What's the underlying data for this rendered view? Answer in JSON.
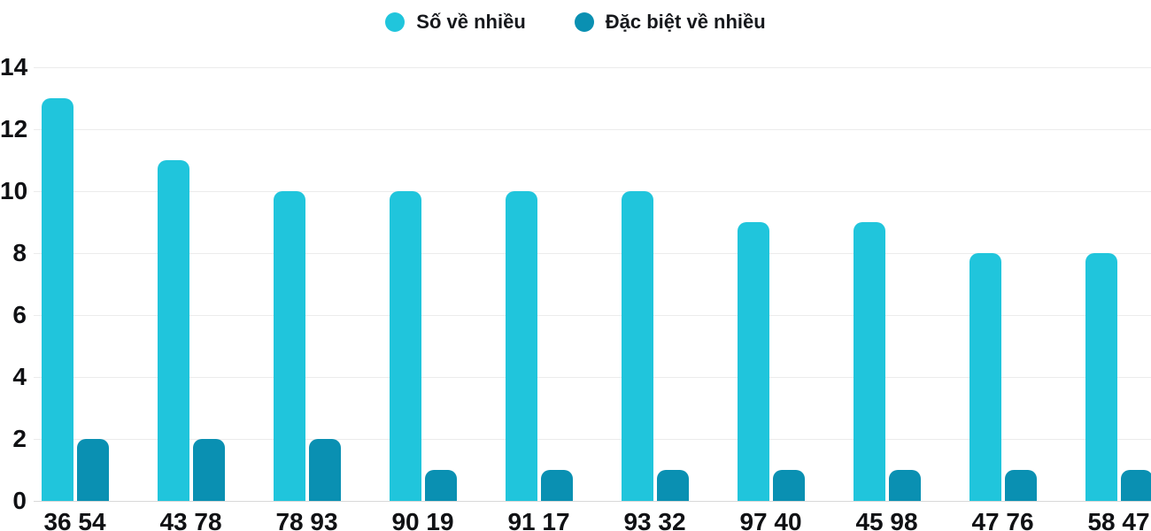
{
  "chart_data": {
    "type": "bar",
    "title": "",
    "xlabel": "",
    "ylabel": "",
    "categories": [
      "36 54",
      "43 78",
      "78 93",
      "90 19",
      "91 17",
      "93 32",
      "97 40",
      "45 98",
      "47 76",
      "58 47"
    ],
    "series": [
      {
        "name": "Số về nhiều",
        "color": "#20c5dc",
        "values": [
          13,
          11,
          10,
          10,
          10,
          10,
          9,
          9,
          8,
          8
        ]
      },
      {
        "name": "Đặc biệt về nhiều",
        "color": "#0a90b2",
        "values": [
          2,
          2,
          2,
          1,
          1,
          1,
          1,
          1,
          1,
          1
        ]
      }
    ],
    "ylim": [
      0,
      14
    ],
    "yticks": [
      0,
      2,
      4,
      6,
      8,
      10,
      12,
      14
    ],
    "grid": true,
    "legend_position": "top-center"
  },
  "colors": {
    "gridline": "#ececec",
    "axis_line": "#d8d8d8",
    "text": "#101114",
    "background": "#ffffff"
  }
}
